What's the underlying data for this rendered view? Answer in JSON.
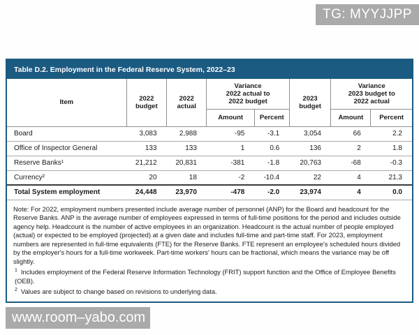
{
  "watermarks": {
    "top_right": "TG: MYYJJPP",
    "bottom_left": "www.room–yabo.com"
  },
  "table": {
    "title": "Table D.2. Employment in the Federal Reserve System, 2022–23",
    "header": {
      "item": "Item",
      "budget_2022": "2022\nbudget",
      "actual_2022": "2022\nactual",
      "variance_2022": "Variance\n2022 actual to\n2022 budget",
      "budget_2023": "2023\nbudget",
      "variance_2023": "Variance\n2023 budget to\n2022 actual",
      "amount": "Amount",
      "percent": "Percent"
    },
    "rows": [
      {
        "item": "Board",
        "values": [
          "3,083",
          "2,988",
          "-95",
          "-3.1",
          "3,054",
          "66",
          "2.2"
        ]
      },
      {
        "item": "Office of Inspector General",
        "values": [
          "133",
          "133",
          "1",
          "0.6",
          "136",
          "2",
          "1.8"
        ]
      },
      {
        "item": "Reserve Banks¹",
        "values": [
          "21,212",
          "20,831",
          "-381",
          "-1.8",
          "20,763",
          "-68",
          "-0.3"
        ]
      },
      {
        "item": "Currency²",
        "values": [
          "20",
          "18",
          "-2",
          "-10.4",
          "22",
          "4",
          "21.3"
        ]
      },
      {
        "item": "Total System employment",
        "values": [
          "24,448",
          "23,970",
          "-478",
          "-2.0",
          "23,974",
          "4",
          "0.0"
        ]
      }
    ],
    "note": "Note: For 2022, employment numbers presented include average number of personnel (ANP) for the Board and headcount for the Reserve Banks. ANP is the average number of employees expressed in terms of full-time positions for the period and includes outside agency help. Headcount is the number of active employees in an organization. Headcount is the actual number of people employed (actual) or expected to be employed (projected) at a given date and includes full-time and part-time staff. For 2023, employment numbers are represented in full-time equivalents (FTE) for the Reserve Banks. FTE represent an employee's scheduled hours divided by the employer's hours for a full-time workweek. Part-time workers' hours can be fractional, which means the variance may be off slightly.",
    "footnotes": [
      {
        "marker": "1",
        "text": "Includes employment of the Federal Reserve Information Technology (FRIT) support function and the Office of Employee Benefits (OEB)."
      },
      {
        "marker": "2",
        "text": "Values are subject to change based on revisions to underlying data."
      }
    ]
  },
  "colors": {
    "title_bar_bg": "#1b5a81",
    "watermark_bg": "#a3a3a3",
    "border_gray": "#8f8f8f",
    "total_rule": "#3a3a3a"
  }
}
